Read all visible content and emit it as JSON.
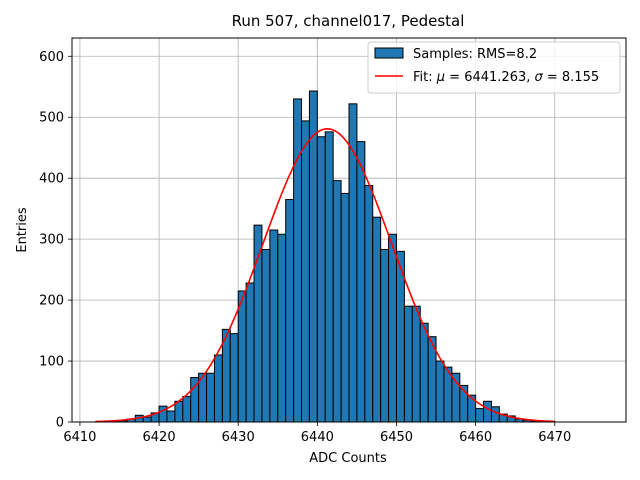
{
  "chart_data": {
    "type": "bar",
    "title": "Run 507, channel017, Pedestal",
    "xlabel": "ADC Counts",
    "ylabel": "Entries",
    "xlim": [
      6409,
      6479
    ],
    "ylim": [
      0,
      630
    ],
    "xticks": [
      "6410",
      "6420",
      "6430",
      "6440",
      "6450",
      "6460",
      "6470"
    ],
    "yticks": [
      "0",
      "100",
      "200",
      "300",
      "400",
      "500",
      "600"
    ],
    "grid": true,
    "legend_position": "top-right",
    "histogram": {
      "name": "Samples: RMS=8.2",
      "color": "#1f77b4",
      "bin_width": 1,
      "bins": [
        {
          "x": 6412,
          "y": 1
        },
        {
          "x": 6413,
          "y": 1
        },
        {
          "x": 6414,
          "y": 1
        },
        {
          "x": 6415,
          "y": 2
        },
        {
          "x": 6416,
          "y": 5
        },
        {
          "x": 6417,
          "y": 11
        },
        {
          "x": 6418,
          "y": 8
        },
        {
          "x": 6419,
          "y": 15
        },
        {
          "x": 6420,
          "y": 26
        },
        {
          "x": 6421,
          "y": 18
        },
        {
          "x": 6422,
          "y": 34
        },
        {
          "x": 6423,
          "y": 42
        },
        {
          "x": 6424,
          "y": 73
        },
        {
          "x": 6425,
          "y": 80
        },
        {
          "x": 6426,
          "y": 80
        },
        {
          "x": 6427,
          "y": 110
        },
        {
          "x": 6428,
          "y": 152
        },
        {
          "x": 6429,
          "y": 145
        },
        {
          "x": 6430,
          "y": 215
        },
        {
          "x": 6431,
          "y": 228
        },
        {
          "x": 6432,
          "y": 323
        },
        {
          "x": 6433,
          "y": 283
        },
        {
          "x": 6434,
          "y": 315
        },
        {
          "x": 6435,
          "y": 308
        },
        {
          "x": 6436,
          "y": 365
        },
        {
          "x": 6437,
          "y": 530
        },
        {
          "x": 6438,
          "y": 494
        },
        {
          "x": 6439,
          "y": 543
        },
        {
          "x": 6440,
          "y": 468
        },
        {
          "x": 6441,
          "y": 476
        },
        {
          "x": 6442,
          "y": 396
        },
        {
          "x": 6443,
          "y": 375
        },
        {
          "x": 6444,
          "y": 522
        },
        {
          "x": 6445,
          "y": 460
        },
        {
          "x": 6446,
          "y": 388
        },
        {
          "x": 6447,
          "y": 336
        },
        {
          "x": 6448,
          "y": 283
        },
        {
          "x": 6449,
          "y": 308
        },
        {
          "x": 6450,
          "y": 280
        },
        {
          "x": 6451,
          "y": 190
        },
        {
          "x": 6452,
          "y": 190
        },
        {
          "x": 6453,
          "y": 162
        },
        {
          "x": 6454,
          "y": 140
        },
        {
          "x": 6455,
          "y": 100
        },
        {
          "x": 6456,
          "y": 90
        },
        {
          "x": 6457,
          "y": 80
        },
        {
          "x": 6458,
          "y": 60
        },
        {
          "x": 6459,
          "y": 44
        },
        {
          "x": 6460,
          "y": 22
        },
        {
          "x": 6461,
          "y": 34
        },
        {
          "x": 6462,
          "y": 25
        },
        {
          "x": 6463,
          "y": 13
        },
        {
          "x": 6464,
          "y": 10
        },
        {
          "x": 6465,
          "y": 5
        },
        {
          "x": 6466,
          "y": 3
        },
        {
          "x": 6467,
          "y": 2
        },
        {
          "x": 6468,
          "y": 1
        },
        {
          "x": 6469,
          "y": 1
        }
      ]
    },
    "fit": {
      "name": "Fit: μ = 6441.263, σ = 8.155",
      "mu": 6441.263,
      "sigma": 8.155,
      "amplitude": 481,
      "x_range": [
        6412,
        6470
      ],
      "color": "#ff0000"
    },
    "legend": {
      "entries": [
        {
          "label_prefix": "Samples: RMS=8.2",
          "kind": "patch"
        },
        {
          "label_prefix": "Fit: ",
          "kind": "line"
        }
      ],
      "fit_parts": {
        "prefix": "Fit: ",
        "mu_symbol": "μ",
        "mu_text": " = 6441.263, ",
        "sigma_symbol": "σ",
        "sigma_text": " = 8.155"
      }
    }
  }
}
